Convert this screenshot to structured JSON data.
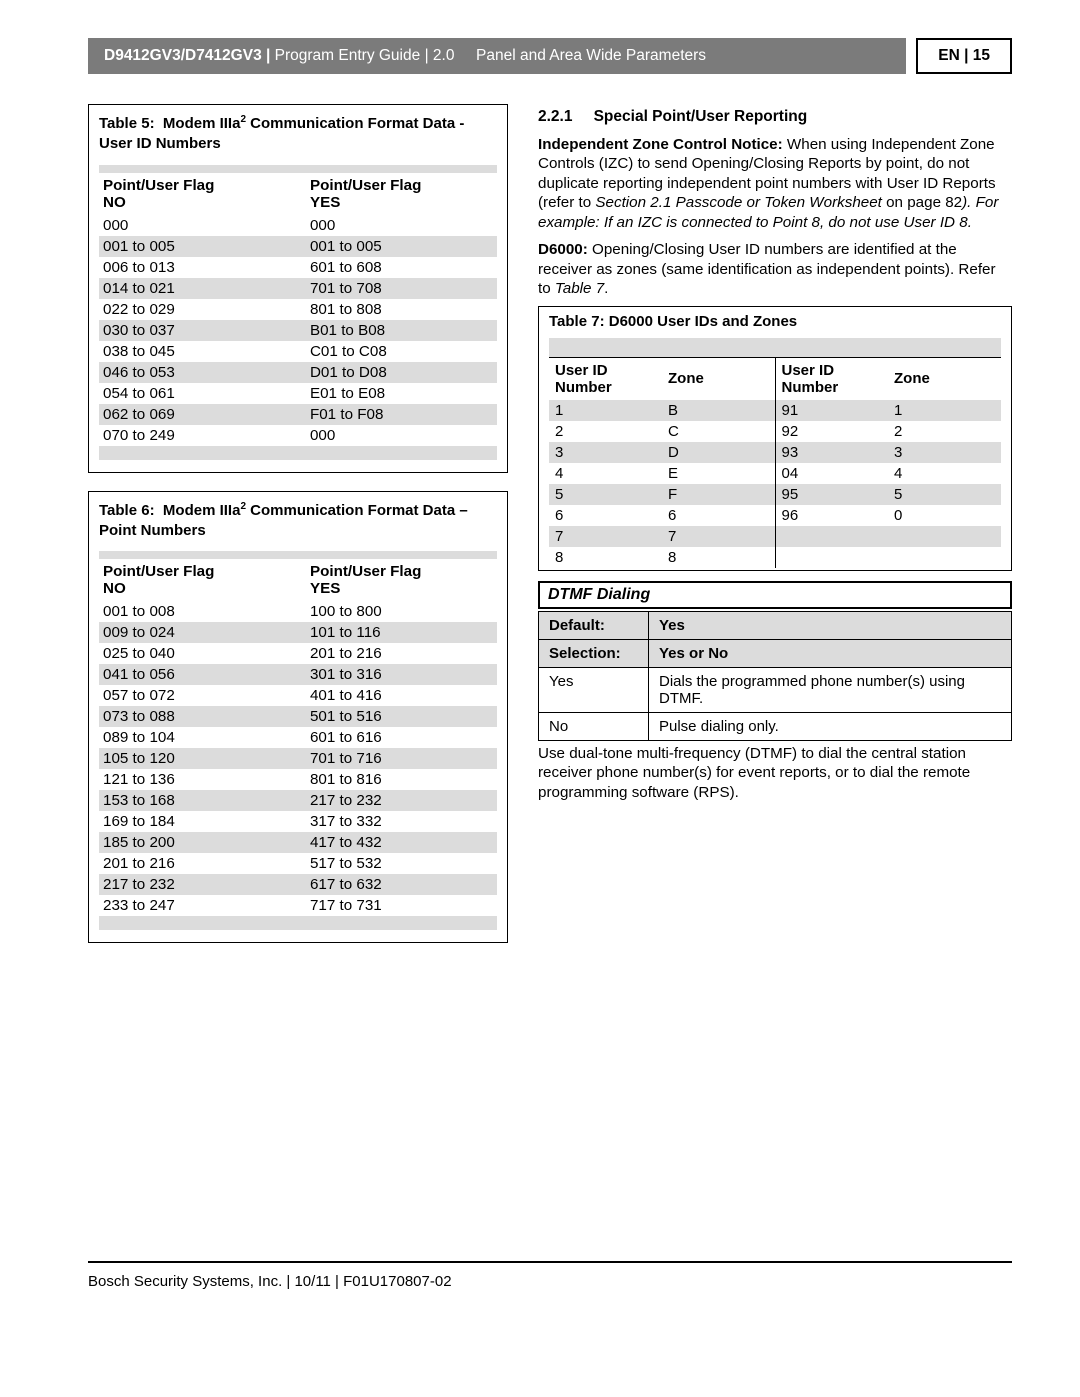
{
  "header": {
    "product": "D9412GV3/D7412GV3 |",
    "doc_title": "Program Entry Guide",
    "doc_rev": "| 2.0",
    "section": "Panel and Area Wide Parameters",
    "lang": "EN",
    "page": "| 15"
  },
  "table5": {
    "title_prefix": "Table 5:",
    "title_main": "Modem IIIa",
    "title_sup": "2",
    "title_rest": " Communication Format Data - User ID Numbers",
    "col1_l1": "Point/User Flag",
    "col1_l2": "NO",
    "col2_l1": "Point/User Flag",
    "col2_l2": "YES",
    "rows": [
      [
        "000",
        "000"
      ],
      [
        "001 to 005",
        "001 to 005"
      ],
      [
        "006 to 013",
        "601 to 608"
      ],
      [
        "014 to 021",
        "701 to 708"
      ],
      [
        "022 to 029",
        "801 to 808"
      ],
      [
        "030 to 037",
        "B01 to B08"
      ],
      [
        "038 to 045",
        "C01 to C08"
      ],
      [
        "046 to 053",
        "D01 to D08"
      ],
      [
        "054 to 061",
        "E01 to E08"
      ],
      [
        "062 to 069",
        "F01 to F08"
      ],
      [
        "070 to 249",
        "000"
      ]
    ]
  },
  "table6": {
    "title_prefix": "Table 6:",
    "title_main": "Modem IIIa",
    "title_sup": "2",
    "title_rest": " Communication Format Data – Point Numbers",
    "col1_l1": "Point/User Flag",
    "col1_l2": "NO",
    "col2_l1": "Point/User Flag",
    "col2_l2": "YES",
    "rows": [
      [
        "001 to 008",
        "100 to 800"
      ],
      [
        "009 to 024",
        "101 to 116"
      ],
      [
        "025 to 040",
        "201 to 216"
      ],
      [
        "041 to 056",
        "301 to 316"
      ],
      [
        "057 to 072",
        "401 to 416"
      ],
      [
        "073 to 088",
        "501 to 516"
      ],
      [
        "089 to 104",
        "601 to 616"
      ],
      [
        "105 to 120",
        "701 to 716"
      ],
      [
        "121 to 136",
        "801 to 816"
      ],
      [
        "153 to 168",
        "217 to 232"
      ],
      [
        "169 to 184",
        "317 to 332"
      ],
      [
        "185 to 200",
        "417 to 432"
      ],
      [
        "201 to 216",
        "517 to 532"
      ],
      [
        "217 to 232",
        "617 to 632"
      ],
      [
        "233 to 247",
        "717 to 731"
      ]
    ]
  },
  "section": {
    "num": "2.2.1",
    "title": "Special Point/User Reporting",
    "p1_bold": "Independent Zone Control Notice:",
    "p1": " When using Independent Zone Controls (IZC) to send Opening/Closing Reports by point, do not duplicate reporting independent point numbers with User ID Reports (refer to ",
    "p1_i": "Section 2.1 Passcode or Token Worksheet",
    "p1_after": " on page 82",
    "p1_close": "). For example: If an IZC is connected to Point 8, do not use User ID 8.",
    "p2_bold": "D6000:",
    "p2": " Opening/Closing User ID numbers are identified at the receiver as zones (same identification as independent points). Refer to ",
    "p2_i": "Table 7",
    "p2_end": "."
  },
  "table7": {
    "title": "Table 7:  D6000 User IDs and Zones",
    "h1": "User ID Number",
    "h2": "Zone",
    "h3": "User ID Number",
    "h4": "Zone",
    "rows": [
      [
        "1",
        "B",
        "91",
        "1"
      ],
      [
        "2",
        "C",
        "92",
        "2"
      ],
      [
        "3",
        "D",
        "93",
        "3"
      ],
      [
        "4",
        "E",
        "04",
        "4"
      ],
      [
        "5",
        "F",
        "95",
        "5"
      ],
      [
        "6",
        "6",
        "96",
        "0"
      ],
      [
        "7",
        "7",
        "",
        ""
      ],
      [
        "8",
        "8",
        "",
        ""
      ]
    ]
  },
  "dtmf": {
    "header": "DTMF Dialing",
    "default_label": "Default:",
    "default_val": "Yes",
    "selection_label": "Selection:",
    "selection_val": "Yes or No",
    "yes_label": "Yes",
    "yes_desc": "Dials the programmed phone number(s) using DTMF.",
    "no_label": "No",
    "no_desc": "Pulse dialing only.",
    "para": "Use dual-tone multi-frequency (DTMF) to dial the central station receiver phone number(s) for event reports, or to dial the remote programming software (RPS)."
  },
  "footer": "Bosch Security Systems, Inc. | 10/11 | F01U170807-02"
}
